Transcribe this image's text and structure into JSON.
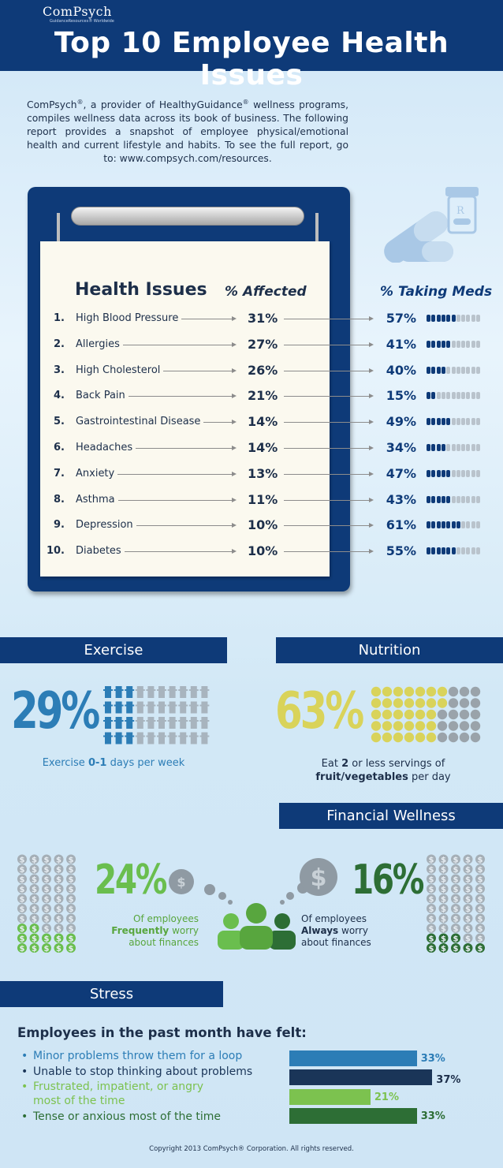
{
  "brand": {
    "name": "ComPsych",
    "subtitle": "GuidanceResources® Worldwide"
  },
  "title": "Top 10 Employee Health Issues",
  "intro": "ComPsych®, a provider of HealthyGuidance® wellness programs, compiles wellness data across its book of business. The following report provides a snapshot of employee physical/emotional health and current lifestyle and habits. To see the full report, go to: www.compsych.com/resources.",
  "table": {
    "headers": {
      "issues": "Health Issues",
      "affected": "% Affected",
      "meds": "% Taking Meds"
    },
    "rows": [
      {
        "num": "1.",
        "name": "High Blood Pressure",
        "affected": "31%",
        "meds": "57%",
        "meds_fraction": 0.57
      },
      {
        "num": "2.",
        "name": "Allergies",
        "affected": "27%",
        "meds": "41%",
        "meds_fraction": 0.41
      },
      {
        "num": "3.",
        "name": "High Cholesterol",
        "affected": "26%",
        "meds": "40%",
        "meds_fraction": 0.4
      },
      {
        "num": "4.",
        "name": "Back Pain",
        "affected": "21%",
        "meds": "15%",
        "meds_fraction": 0.15
      },
      {
        "num": "5.",
        "name": "Gastrointestinal Disease",
        "affected": "14%",
        "meds": "49%",
        "meds_fraction": 0.49
      },
      {
        "num": "6.",
        "name": "Headaches",
        "affected": "14%",
        "meds": "34%",
        "meds_fraction": 0.34
      },
      {
        "num": "7.",
        "name": "Anxiety",
        "affected": "13%",
        "meds": "47%",
        "meds_fraction": 0.47
      },
      {
        "num": "8.",
        "name": "Asthma",
        "affected": "11%",
        "meds": "43%",
        "meds_fraction": 0.43
      },
      {
        "num": "9.",
        "name": "Depression",
        "affected": "10%",
        "meds": "61%",
        "meds_fraction": 0.61
      },
      {
        "num": "10.",
        "name": "Diabetes",
        "affected": "10%",
        "meds": "55%",
        "meds_fraction": 0.55
      }
    ]
  },
  "exercise": {
    "heading": "Exercise",
    "pct": "29%",
    "fraction": 0.29,
    "caption_pre": "Exercise ",
    "caption_bold": "0-1",
    "caption_post": " days per week"
  },
  "nutrition": {
    "heading": "Nutrition",
    "pct": "63%",
    "fraction": 0.63,
    "caption_pre": "Eat ",
    "caption_bold": "2",
    "caption_mid": " or less servings of",
    "caption_bold2": "fruit/vegetables",
    "caption_post": " per day"
  },
  "financial": {
    "heading": "Financial Wellness",
    "left_pct": "24%",
    "left_fraction": 0.24,
    "left_caption_1": "Of employees",
    "left_caption_bold": "Frequently",
    "left_caption_2": " worry",
    "left_caption_3": "about finances",
    "right_pct": "16%",
    "right_fraction": 0.16,
    "right_caption_1": "Of employees",
    "right_caption_bold": "Always",
    "right_caption_2": " worry",
    "right_caption_3": "about finances"
  },
  "stress": {
    "heading": "Stress",
    "subheading": "Employees in the past month have felt:",
    "items": [
      {
        "label": "Minor problems throw them for a loop",
        "value": "33%",
        "number": 33,
        "color": "#2c7db6"
      },
      {
        "label": "Unable to stop thinking about problems",
        "value": "37%",
        "number": 37,
        "color": "#1a3558"
      },
      {
        "label": "Frustrated, impatient, or angry",
        "label2": "most of the time",
        "value": "21%",
        "number": 21,
        "color": "#7cc24f"
      },
      {
        "label": "Tense or anxious most of the time",
        "value": "33%",
        "number": 33,
        "color": "#2d6e35"
      }
    ]
  },
  "copyright": "Copyright 2013 ComPsych® Corporation. All rights reserved.",
  "colors": {
    "navy": "#0e3a78",
    "blue": "#2c7db6",
    "yellow": "#d9d35a",
    "light_green": "#6abe4e",
    "dark_green": "#2d6e35"
  }
}
